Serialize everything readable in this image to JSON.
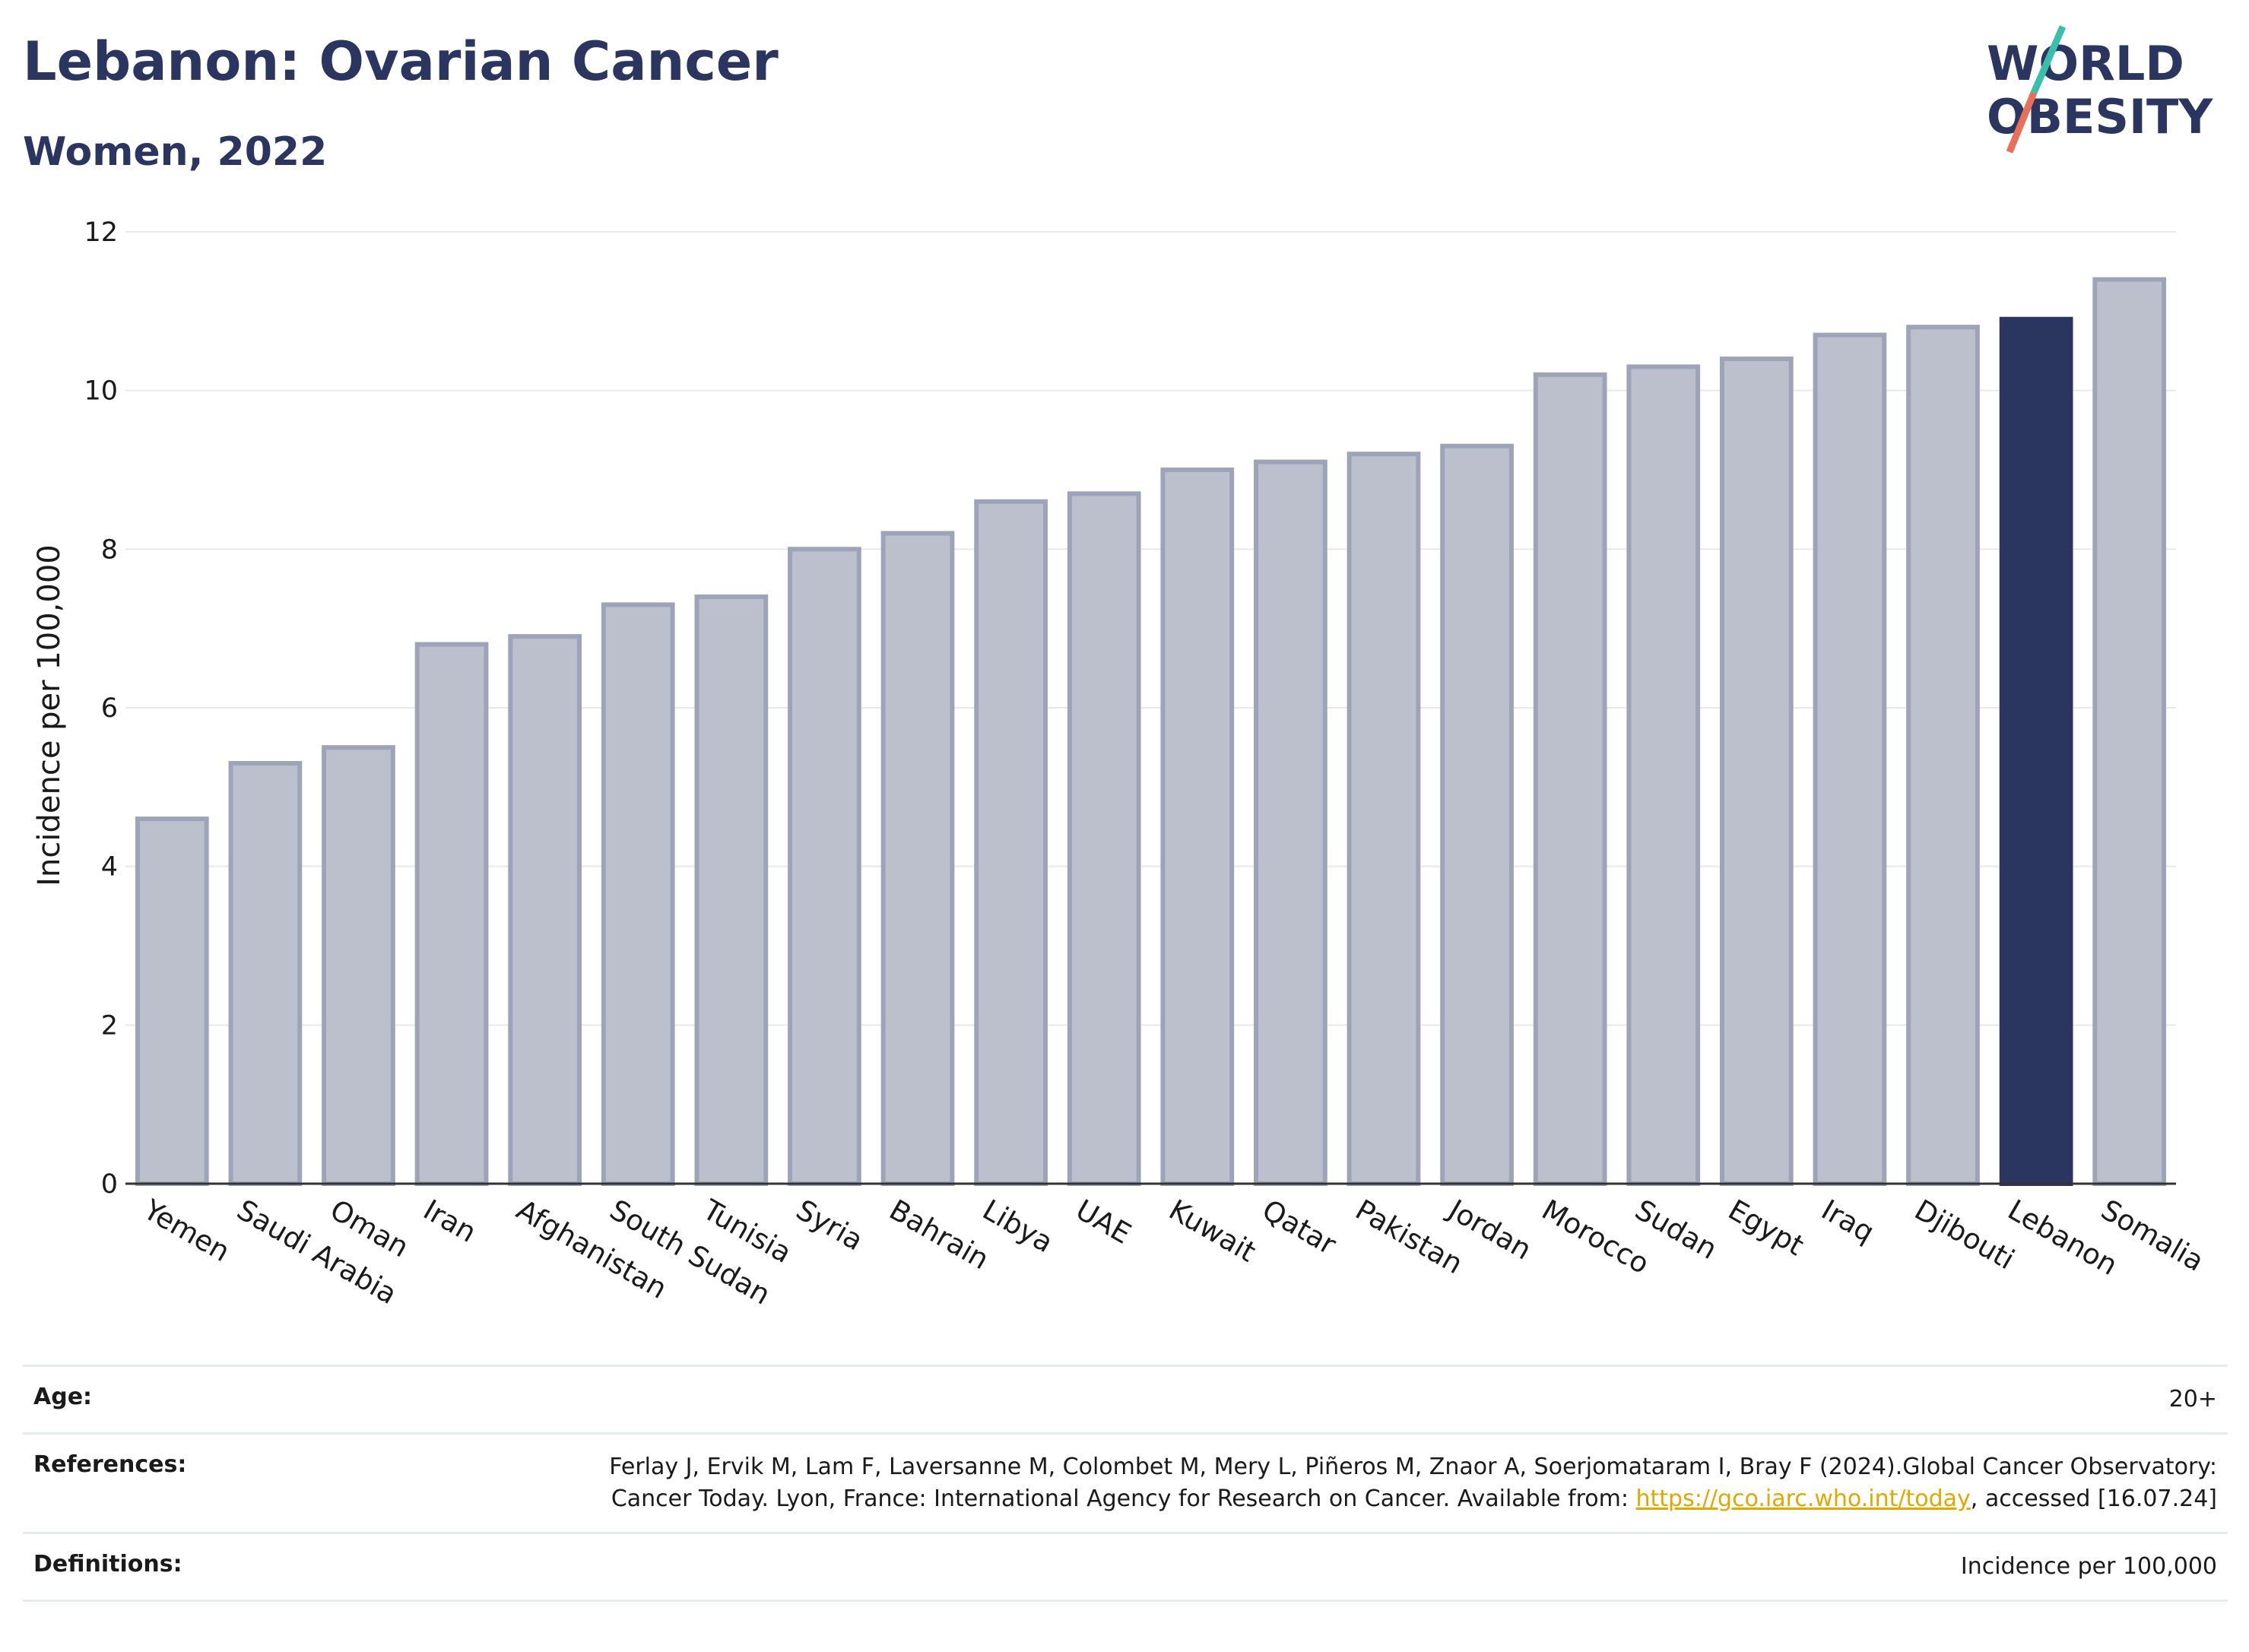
{
  "header": {
    "title": "Lebanon: Ovarian Cancer",
    "subtitle": "Women, 2022"
  },
  "logo": {
    "line1": "WORLD",
    "line2": "OBESITY",
    "colors": {
      "text": "#2a3560",
      "slash_top": "#3bbfad",
      "slash_bottom": "#e8705a"
    }
  },
  "chart_data": {
    "type": "bar",
    "ylabel": "Incidence per 100,000",
    "ylim": [
      0,
      12
    ],
    "yticks": [
      0,
      2,
      4,
      6,
      8,
      10,
      12
    ],
    "grid": true,
    "categories": [
      "Yemen",
      "Saudi Arabia",
      "Oman",
      "Iran",
      "Afghanistan",
      "South Sudan",
      "Tunisia",
      "Syria",
      "Bahrain",
      "Libya",
      "UAE",
      "Kuwait",
      "Qatar",
      "Pakistan",
      "Jordan",
      "Morocco",
      "Sudan",
      "Egypt",
      "Iraq",
      "Djibouti",
      "Lebanon",
      "Somalia"
    ],
    "values": [
      4.6,
      5.3,
      5.5,
      6.8,
      6.9,
      7.3,
      7.4,
      8.0,
      8.2,
      8.6,
      8.7,
      9.0,
      9.1,
      9.2,
      9.3,
      10.2,
      10.3,
      10.4,
      10.7,
      10.8,
      10.9,
      11.4
    ],
    "highlight": "Lebanon",
    "colors": {
      "bar": "#bcc0cd",
      "bar_edge": "#9ea4b8",
      "highlight": "#2a3560"
    }
  },
  "footer": {
    "age_label": "Age:",
    "age_value": "20+",
    "references_label": "References:",
    "references_text_1": "Ferlay J, Ervik M, Lam F, Laversanne M, Colombet M, Mery L, Piñeros M, Znaor A, Soerjomataram I, Bray F (2024).Global Cancer Observatory: Cancer Today. Lyon, France: International Agency for Research on Cancer. Available from: ",
    "references_link": "https://gco.iarc.who.int/today",
    "references_text_2": ", accessed [16.07.24]",
    "definitions_label": "Definitions:",
    "definitions_value": "Incidence per 100,000"
  }
}
